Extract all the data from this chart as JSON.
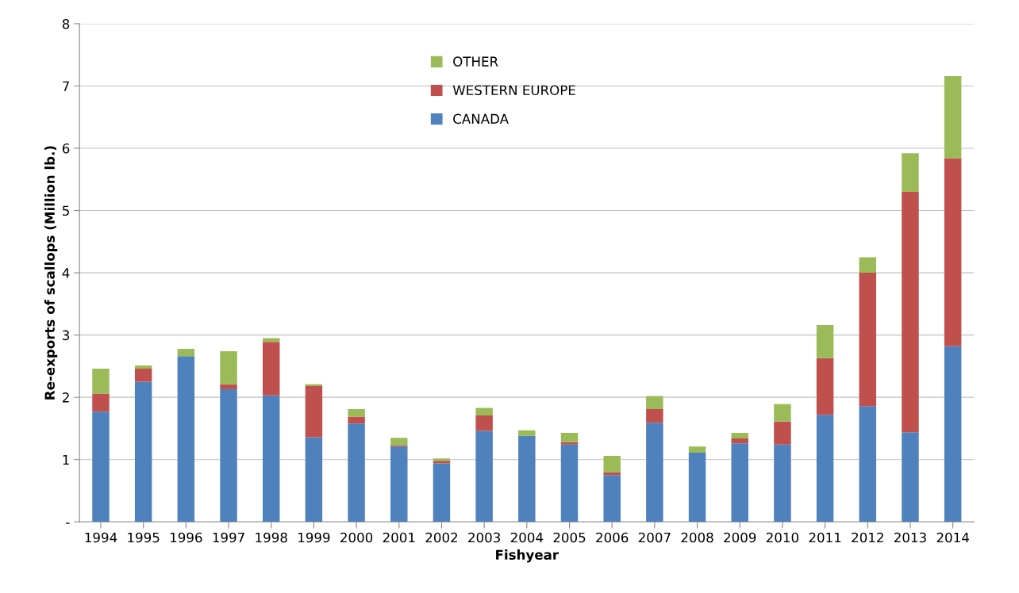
{
  "chart_data": {
    "type": "bar",
    "stacked": true,
    "xlabel": "Fishyear",
    "ylabel": "Re-exports of scallops (Million lb.)",
    "categories": [
      "1994",
      "1995",
      "1996",
      "1997",
      "1998",
      "1999",
      "2000",
      "2001",
      "2002",
      "2003",
      "2004",
      "2005",
      "2006",
      "2007",
      "2008",
      "2009",
      "2010",
      "2011",
      "2012",
      "2013",
      "2014"
    ],
    "series": [
      {
        "name": "CANADA",
        "color": "#4f81bd",
        "values": [
          1.77,
          2.25,
          2.66,
          2.13,
          2.03,
          1.36,
          1.58,
          1.21,
          0.94,
          1.46,
          1.38,
          1.24,
          0.75,
          1.59,
          1.11,
          1.26,
          1.24,
          1.72,
          1.86,
          1.44,
          2.82
        ]
      },
      {
        "name": "WESTERN EUROPE",
        "color": "#c0504d",
        "values": [
          0.29,
          0.21,
          0,
          0.08,
          0.86,
          0.82,
          0.11,
          0.02,
          0.04,
          0.25,
          0,
          0.04,
          0.05,
          0.22,
          0,
          0.08,
          0.37,
          0.91,
          2.14,
          3.86,
          3.02
        ]
      },
      {
        "name": "OTHER",
        "color": "#9bbb59",
        "values": [
          0.4,
          0.05,
          0.12,
          0.53,
          0.06,
          0.03,
          0.12,
          0.12,
          0.04,
          0.12,
          0.09,
          0.15,
          0.26,
          0.21,
          0.1,
          0.09,
          0.28,
          0.53,
          0.25,
          0.62,
          1.32
        ]
      }
    ],
    "ylim": [
      0,
      8
    ],
    "yticks": [
      {
        "value": 0,
        "label": "-"
      },
      1,
      2,
      3,
      4,
      5,
      6,
      7,
      8
    ],
    "grid": "y",
    "legend": "top"
  }
}
